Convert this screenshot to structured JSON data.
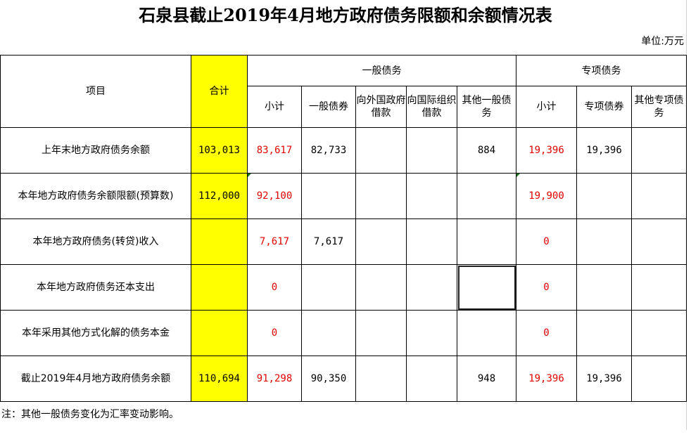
{
  "title": "石泉县截止2019年4月地方政府债务限额和余额情况表",
  "unit": "单位:万元",
  "header": {
    "item": "项目",
    "total": "合计",
    "general_group": "一般债务",
    "special_group": "专项债务",
    "sub": [
      "小计",
      "一般债券",
      "向外国政府借款",
      "向国际组织借款",
      "其他一般债务",
      "小计",
      "专项债券",
      "其他专项债务"
    ]
  },
  "rows": [
    {
      "label": "上年末地方政府债务余额",
      "total": "103,013",
      "g_sub": "83,617",
      "g_bond": "82,733",
      "g_foreign": "",
      "g_intl": "",
      "g_other": "884",
      "s_sub": "19,396",
      "s_bond": "19,396",
      "s_other": ""
    },
    {
      "label": "本年地方政府债务余额限额(预算数)",
      "total": "112,000",
      "g_sub": "92,100",
      "g_bond": "",
      "g_foreign": "",
      "g_intl": "",
      "g_other": "",
      "s_sub": "19,900",
      "s_bond": "",
      "s_other": ""
    },
    {
      "label": "本年地方政府债务(转贷)收入",
      "total": "",
      "g_sub": "7,617",
      "g_bond": "7,617",
      "g_foreign": "",
      "g_intl": "",
      "g_other": "",
      "s_sub": "0",
      "s_bond": "",
      "s_other": ""
    },
    {
      "label": "本年地方政府债务还本支出",
      "total": "",
      "g_sub": "0",
      "g_bond": "",
      "g_foreign": "",
      "g_intl": "",
      "g_other": "",
      "s_sub": "0",
      "s_bond": "",
      "s_other": ""
    },
    {
      "label": "本年采用其他方式化解的债务本金",
      "total": "",
      "g_sub": "0",
      "g_bond": "",
      "g_foreign": "",
      "g_intl": "",
      "g_other": "",
      "s_sub": "0",
      "s_bond": "",
      "s_other": ""
    },
    {
      "label": "截止2019年4月地方政府债务余额",
      "total": "110,694",
      "g_sub": "91,298",
      "g_bond": "90,350",
      "g_foreign": "",
      "g_intl": "",
      "g_other": "948",
      "s_sub": "19,396",
      "s_bond": "19,396",
      "s_other": ""
    }
  ],
  "note": "注：其他一般债务变化为汇率变动影响。",
  "colors": {
    "highlight": "#ffff00",
    "subtotal_text": "#e00000"
  }
}
